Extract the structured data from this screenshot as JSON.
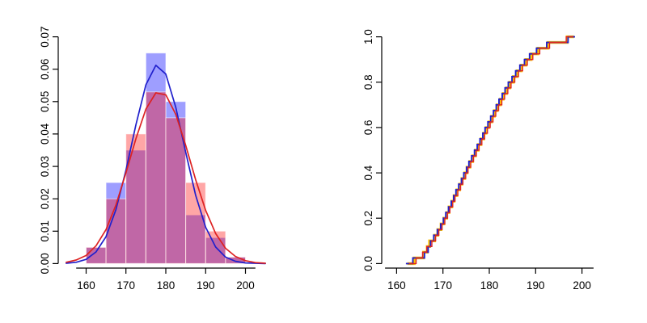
{
  "figure": {
    "background": "#ffffff"
  },
  "chart_data": [
    {
      "type": "histogram",
      "title": "",
      "xlabel": "",
      "ylabel": "",
      "xlim": [
        155,
        205
      ],
      "ylim": [
        0,
        0.07
      ],
      "grid": false,
      "legend": "none",
      "xticks": [
        {
          "v": 160,
          "label": "160"
        },
        {
          "v": 170,
          "label": "170"
        },
        {
          "v": 180,
          "label": "180"
        },
        {
          "v": 190,
          "label": "190"
        },
        {
          "v": 200,
          "label": "200"
        }
      ],
      "yticks": [
        {
          "v": 0.0,
          "label": "0.00"
        },
        {
          "v": 0.01,
          "label": "0.01"
        },
        {
          "v": 0.02,
          "label": "0.02"
        },
        {
          "v": 0.03,
          "label": "0.03"
        },
        {
          "v": 0.04,
          "label": "0.04"
        },
        {
          "v": 0.05,
          "label": "0.05"
        },
        {
          "v": 0.06,
          "label": "0.06"
        },
        {
          "v": 0.07,
          "label": "0.07"
        }
      ],
      "bins": {
        "start": 155,
        "width": 5
      },
      "series": [
        {
          "name": "histogram-blue",
          "color": "rgba(0,0,255,0.38)",
          "border": "rgba(255,255,255,0.55)",
          "densities": [
            0,
            0.005,
            0.025,
            0.035,
            0.065,
            0.05,
            0.015,
            0.008,
            0.002,
            0
          ]
        },
        {
          "name": "histogram-red",
          "color": "rgba(255,0,0,0.35)",
          "border": "rgba(255,255,255,0.55)",
          "densities": [
            0,
            0.005,
            0.02,
            0.04,
            0.053,
            0.045,
            0.025,
            0.01,
            0.002,
            0
          ]
        }
      ],
      "curves": [
        {
          "name": "density-curve-blue",
          "color": "#2020cc",
          "width": 1.7,
          "x": [
            155,
            157.5,
            160,
            162.5,
            165,
            167.5,
            170,
            172.5,
            175,
            177.5,
            180,
            182.5,
            185,
            187.5,
            190,
            192.5,
            195,
            197.5,
            200,
            202.5,
            205
          ],
          "y": [
            0.0001,
            0.0004,
            0.0013,
            0.0036,
            0.0083,
            0.0167,
            0.0288,
            0.0429,
            0.0552,
            0.0612,
            0.0585,
            0.0483,
            0.0344,
            0.0211,
            0.0112,
            0.0051,
            0.002,
            0.0007,
            0.0002,
            0.0001,
            0.0
          ]
        },
        {
          "name": "density-curve-red",
          "color": "#dd2222",
          "width": 1.7,
          "x": [
            155,
            157.5,
            160,
            162.5,
            165,
            167.5,
            170,
            172.5,
            175,
            177.5,
            180,
            182.5,
            185,
            187.5,
            190,
            192.5,
            195,
            197.5,
            200,
            202.5,
            205
          ],
          "y": [
            0.0004,
            0.0011,
            0.0025,
            0.0055,
            0.0105,
            0.0181,
            0.028,
            0.0386,
            0.0477,
            0.0527,
            0.0521,
            0.0461,
            0.0365,
            0.0259,
            0.0164,
            0.0093,
            0.0047,
            0.0022,
            0.0009,
            0.0003,
            0.0001
          ]
        }
      ]
    },
    {
      "type": "ecdf",
      "title": "",
      "xlabel": "",
      "ylabel": "",
      "xlim": [
        158.5,
        201.5
      ],
      "ylim": [
        0,
        1
      ],
      "grid": false,
      "legend": "none",
      "xticks": [
        {
          "v": 160,
          "label": "160"
        },
        {
          "v": 170,
          "label": "170"
        },
        {
          "v": 180,
          "label": "180"
        },
        {
          "v": 190,
          "label": "190"
        },
        {
          "v": 200,
          "label": "200"
        }
      ],
      "yticks": [
        {
          "v": 0.0,
          "label": "0.0"
        },
        {
          "v": 0.2,
          "label": "0.2"
        },
        {
          "v": 0.4,
          "label": "0.4"
        },
        {
          "v": 0.6,
          "label": "0.6"
        },
        {
          "v": 0.8,
          "label": "0.8"
        },
        {
          "v": 1.0,
          "label": "1.0"
        }
      ],
      "series": [
        {
          "name": "ecdf-yellow",
          "color": "#ffc400",
          "width": 3.4,
          "x": [
            163.8,
            165.8,
            166.6,
            167.1,
            168.2,
            168.9,
            169.6,
            170.2,
            170.8,
            171.3,
            171.9,
            172.4,
            173.0,
            173.6,
            174.1,
            174.7,
            175.2,
            175.8,
            176.4,
            177.0,
            177.6,
            178.2,
            178.8,
            179.3,
            179.9,
            180.5,
            181.1,
            181.7,
            182.4,
            183.0,
            183.7,
            184.4,
            185.2,
            186.0,
            186.9,
            187.9,
            189.0,
            190.5,
            192.7,
            196.8
          ]
        },
        {
          "name": "ecdf-blue",
          "color": "#2020cc",
          "width": 1.9,
          "x": [
            163.5,
            166.0,
            166.8,
            167.3,
            168.0,
            168.8,
            169.5,
            170.1,
            170.6,
            171.2,
            171.8,
            172.3,
            172.8,
            173.4,
            174.0,
            174.5,
            175.1,
            175.6,
            176.2,
            176.8,
            177.4,
            178.0,
            178.6,
            179.1,
            179.7,
            180.3,
            180.9,
            181.5,
            182.1,
            182.8,
            183.4,
            184.1,
            184.9,
            185.7,
            186.6,
            187.6,
            188.7,
            190.2,
            192.4,
            197.0
          ]
        },
        {
          "name": "ecdf-red",
          "color": "#dd2222",
          "width": 1.4,
          "x": [
            164.2,
            165.6,
            166.5,
            167.6,
            168.4,
            169.1,
            169.8,
            170.4,
            171.0,
            171.5,
            172.1,
            172.6,
            173.2,
            173.8,
            174.3,
            174.9,
            175.4,
            176.0,
            176.6,
            177.2,
            177.8,
            178.4,
            179.0,
            179.6,
            180.2,
            180.8,
            181.4,
            182.0,
            182.7,
            183.3,
            184.0,
            184.7,
            185.5,
            186.3,
            187.2,
            188.2,
            189.4,
            190.9,
            193.0,
            196.6
          ]
        }
      ]
    }
  ]
}
